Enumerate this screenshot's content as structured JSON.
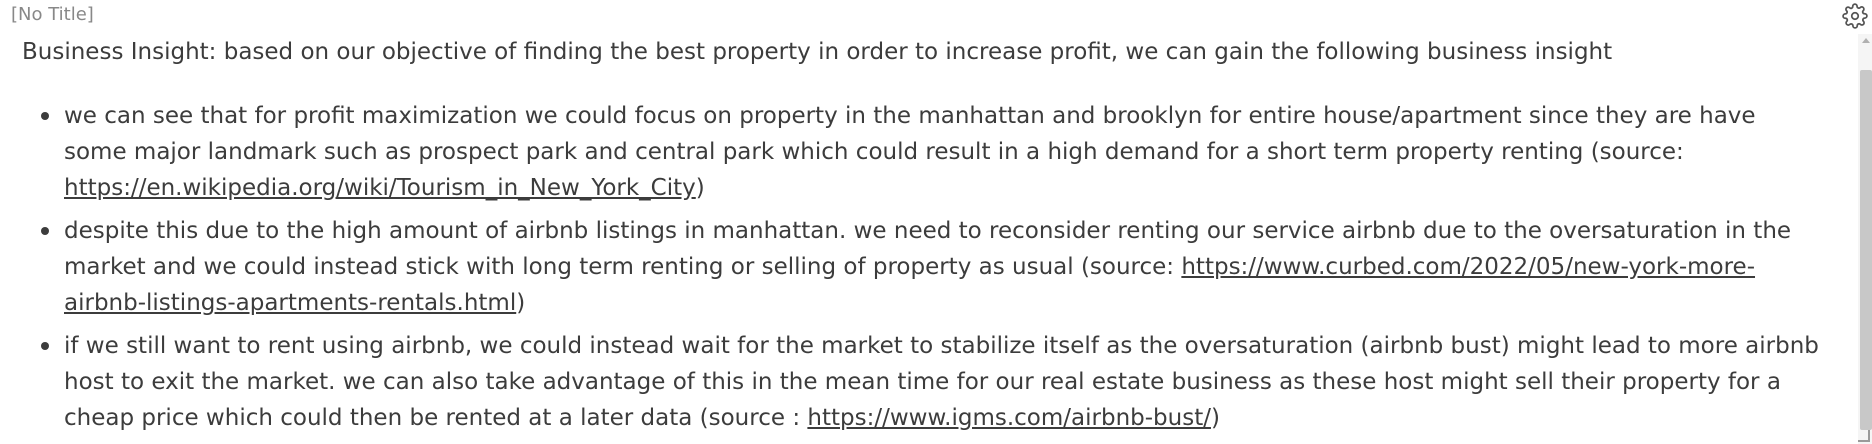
{
  "header": {
    "title": "[No Title]",
    "settings_icon": "gear-icon"
  },
  "content": {
    "intro": "Business Insight: based on our objective of finding the best property in order to increase profit, we can gain the following business insight",
    "bullets": [
      {
        "text": "we can see that for profit maximization we could focus on property in the manhattan and brooklyn for entire house/apartment since they are have some major landmark such as prospect park and central park which could result in a high demand for a short term property renting (source: ",
        "link": "https://en.wikipedia.org/wiki/Tourism_in_New_York_City",
        "suffix": ")"
      },
      {
        "text": "despite this due to the high amount of airbnb listings in manhattan. we need to reconsider renting our service airbnb due to the oversaturation in the market and we could instead stick with long term renting or selling of property as usual (source: ",
        "link": "https://www.curbed.com/2022/05/new-york-more-airbnb-listings-apartments-rentals.html",
        "suffix": ")"
      },
      {
        "text": "if we still want to rent using airbnb, we could instead wait for the market to stabilize itself as the oversaturation (airbnb bust) might lead to more airbnb host to exit the market. we can also take advantage of this in the mean time for our real estate business as these host might sell their property for a cheap price which could then be rented at a later data (source : ",
        "link": "https://www.igms.com/airbnb-bust/",
        "suffix": ")"
      }
    ]
  }
}
